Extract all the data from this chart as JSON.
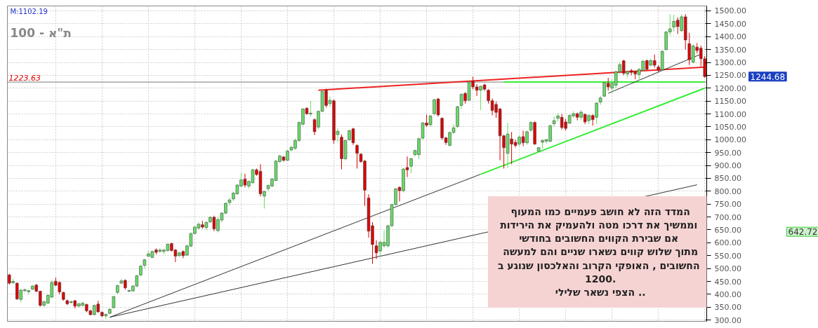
{
  "chart_data": {
    "type": "candlestick",
    "title": "ת\"א - 100",
    "categories": [
      null,
      null,
      null,
      null,
      null,
      null,
      null,
      null,
      null,
      null,
      null,
      null,
      null,
      null,
      null,
      null,
      null,
      null,
      null,
      null,
      null,
      null,
      null,
      null,
      null,
      null,
      null,
      null,
      null,
      null,
      null,
      null,
      null,
      null,
      null,
      null,
      null,
      null,
      null,
      null,
      null,
      null,
      null,
      null,
      null,
      null,
      null,
      null,
      null,
      null,
      null,
      null,
      null,
      null,
      null,
      null,
      null,
      null,
      null,
      null,
      null,
      null,
      null,
      null,
      null,
      null,
      null,
      null,
      null,
      null,
      null,
      null,
      null,
      null,
      null,
      null,
      null,
      null,
      null,
      null,
      null,
      null,
      null,
      null,
      null,
      null,
      null,
      null,
      null,
      null,
      null,
      null,
      null,
      null,
      null,
      null,
      null,
      null,
      null,
      null,
      null,
      null,
      null,
      null,
      null,
      null,
      null,
      null,
      null,
      null,
      null,
      null,
      null,
      null,
      null,
      null,
      null,
      null,
      null,
      null,
      null,
      null,
      null,
      null,
      null,
      null,
      null,
      null,
      null,
      null,
      null,
      null,
      null,
      null,
      null,
      null,
      null,
      null,
      null,
      null,
      null,
      null,
      null,
      null,
      null,
      null,
      null,
      null,
      null,
      null,
      null,
      null,
      null,
      null,
      null,
      null,
      null,
      null,
      null,
      null,
      null,
      null,
      null,
      null,
      null,
      null,
      null,
      null,
      null,
      null,
      null,
      null,
      null,
      null,
      null,
      null,
      null,
      null,
      null,
      null,
      null
    ],
    "ohlc": [
      [
        475,
        480,
        438,
        443
      ],
      [
        445,
        460,
        440,
        450
      ],
      [
        443,
        446,
        378,
        382
      ],
      [
        380,
        420,
        370,
        416
      ],
      [
        414,
        422,
        408,
        418
      ],
      [
        410,
        418,
        400,
        414
      ],
      [
        420,
        436,
        415,
        432
      ],
      [
        436,
        440,
        408,
        412
      ],
      [
        412,
        414,
        352,
        357
      ],
      [
        357,
        375,
        352,
        371
      ],
      [
        366,
        400,
        362,
        396
      ],
      [
        389,
        455,
        385,
        446
      ],
      [
        451,
        465,
        432,
        435
      ],
      [
        446,
        450,
        400,
        409
      ],
      [
        407,
        410,
        375,
        380
      ],
      [
        375,
        380,
        358,
        363
      ],
      [
        368,
        376,
        364,
        371
      ],
      [
        375,
        378,
        345,
        354
      ],
      [
        354,
        368,
        350,
        363
      ],
      [
        357,
        370,
        353,
        366
      ],
      [
        360,
        364,
        330,
        336
      ],
      [
        336,
        340,
        318,
        321
      ],
      [
        321,
        360,
        318,
        357
      ],
      [
        362,
        375,
        328,
        332
      ],
      [
        330,
        334,
        312,
        316
      ],
      [
        316,
        326,
        305,
        322
      ],
      [
        326,
        346,
        322,
        342
      ],
      [
        348,
        395,
        344,
        391
      ],
      [
        407,
        438,
        400,
        434
      ],
      [
        443,
        460,
        440,
        452
      ],
      [
        454,
        458,
        418,
        425
      ],
      [
        412,
        418,
        408,
        415
      ],
      [
        413,
        436,
        410,
        432
      ],
      [
        432,
        476,
        428,
        472
      ],
      [
        475,
        513,
        470,
        509
      ],
      [
        512,
        538,
        500,
        534
      ],
      [
        548,
        570,
        545,
        557
      ],
      [
        543,
        570,
        540,
        566
      ],
      [
        572,
        578,
        555,
        563
      ],
      [
        567,
        578,
        560,
        572
      ],
      [
        566,
        576,
        555,
        572
      ],
      [
        570,
        598,
        566,
        594
      ],
      [
        597,
        600,
        566,
        570
      ],
      [
        572,
        576,
        525,
        548
      ],
      [
        550,
        565,
        545,
        561
      ],
      [
        566,
        570,
        540,
        550
      ],
      [
        552,
        592,
        548,
        588
      ],
      [
        587,
        640,
        583,
        636
      ],
      [
        636,
        665,
        632,
        661
      ],
      [
        657,
        680,
        653,
        672
      ],
      [
        670,
        685,
        655,
        661
      ],
      [
        659,
        683,
        650,
        679
      ],
      [
        681,
        703,
        677,
        699
      ],
      [
        699,
        705,
        645,
        654
      ],
      [
        647,
        700,
        640,
        690
      ],
      [
        688,
        719,
        680,
        715
      ],
      [
        715,
        757,
        710,
        753
      ],
      [
        756,
        775,
        745,
        766
      ],
      [
        770,
        797,
        762,
        793
      ],
      [
        790,
        828,
        786,
        824
      ],
      [
        820,
        870,
        815,
        844
      ],
      [
        847,
        868,
        815,
        824
      ],
      [
        820,
        842,
        810,
        838
      ],
      [
        833,
        887,
        829,
        883
      ],
      [
        883,
        888,
        860,
        865
      ],
      [
        877,
        905,
        780,
        790
      ],
      [
        781,
        803,
        733,
        799
      ],
      [
        810,
        826,
        800,
        822
      ],
      [
        820,
        851,
        816,
        847
      ],
      [
        842,
        921,
        838,
        917
      ],
      [
        915,
        941,
        910,
        937
      ],
      [
        933,
        937,
        915,
        920
      ],
      [
        920,
        960,
        916,
        956
      ],
      [
        960,
        975,
        955,
        971
      ],
      [
        967,
        1005,
        960,
        997
      ],
      [
        997,
        1071,
        990,
        1067
      ],
      [
        1060,
        1123,
        1055,
        1119
      ],
      [
        1122,
        1126,
        1096,
        1101
      ],
      [
        1100,
        1150,
        1090,
        1103
      ],
      [
        1078,
        1082,
        1018,
        1031
      ],
      [
        1049,
        1114,
        1040,
        1110
      ],
      [
        1110,
        1192,
        1106,
        1187
      ],
      [
        1192,
        1198,
        1125,
        1133
      ],
      [
        1140,
        1168,
        1128,
        1153
      ],
      [
        1151,
        1155,
        985,
        998
      ],
      [
        1020,
        1045,
        990,
        1033
      ],
      [
        1010,
        1020,
        885,
        926
      ],
      [
        926,
        1001,
        920,
        997
      ],
      [
        1000,
        1039,
        995,
        1035
      ],
      [
        1042,
        1046,
        980,
        988
      ],
      [
        978,
        982,
        888,
        947
      ],
      [
        944,
        948,
        910,
        915
      ],
      [
        917,
        921,
        743,
        804
      ],
      [
        774,
        788,
        620,
        645
      ],
      [
        666,
        680,
        518,
        593
      ],
      [
        588,
        610,
        537,
        561
      ],
      [
        568,
        610,
        545,
        602
      ],
      [
        588,
        647,
        580,
        602
      ],
      [
        588,
        670,
        582,
        666
      ],
      [
        666,
        752,
        660,
        748
      ],
      [
        748,
        813,
        744,
        809
      ],
      [
        815,
        819,
        760,
        802
      ],
      [
        802,
        890,
        795,
        886
      ],
      [
        892,
        935,
        855,
        883
      ],
      [
        897,
        930,
        870,
        926
      ],
      [
        942,
        962,
        935,
        958
      ],
      [
        942,
        1008,
        925,
        1004
      ],
      [
        1006,
        1069,
        1000,
        1065
      ],
      [
        1065,
        1097,
        1050,
        1056
      ],
      [
        1058,
        1096,
        1050,
        1092
      ],
      [
        1101,
        1159,
        1095,
        1155
      ],
      [
        1158,
        1162,
        1090,
        1096
      ],
      [
        1083,
        1087,
        1000,
        1007
      ],
      [
        1007,
        1011,
        980,
        989
      ],
      [
        978,
        1032,
        973,
        1028
      ],
      [
        1028,
        1060,
        1022,
        1046
      ],
      [
        1051,
        1132,
        1045,
        1128
      ],
      [
        1133,
        1180,
        1120,
        1176
      ],
      [
        1180,
        1184,
        1140,
        1151
      ],
      [
        1153,
        1227,
        1150,
        1223
      ],
      [
        1228,
        1245,
        1195,
        1205
      ],
      [
        1205,
        1215,
        1170,
        1192
      ],
      [
        1192,
        1211,
        1115,
        1207
      ],
      [
        1213,
        1217,
        1190,
        1196
      ],
      [
        1192,
        1196,
        1140,
        1151
      ],
      [
        1151,
        1160,
        1095,
        1113
      ],
      [
        1137,
        1148,
        1085,
        1106
      ],
      [
        1119,
        1123,
        920,
        1015
      ],
      [
        1015,
        1019,
        888,
        969
      ],
      [
        947,
        1065,
        890,
        1022
      ],
      [
        1003,
        1030,
        905,
        983
      ],
      [
        990,
        1000,
        970,
        978
      ],
      [
        983,
        1018,
        975,
        1010
      ],
      [
        1012,
        1035,
        975,
        988
      ],
      [
        988,
        1035,
        980,
        1031
      ],
      [
        1037,
        1072,
        1030,
        1067
      ],
      [
        1067,
        1071,
        980,
        983
      ],
      [
        955,
        973,
        950,
        969
      ],
      [
        990,
        1001,
        965,
        997
      ],
      [
        994,
        1004,
        985,
        1000
      ],
      [
        994,
        1058,
        990,
        1054
      ],
      [
        1062,
        1090,
        1050,
        1074
      ],
      [
        1083,
        1103,
        1070,
        1092
      ],
      [
        1087,
        1100,
        1040,
        1047
      ],
      [
        1069,
        1080,
        1035,
        1044
      ],
      [
        1064,
        1098,
        1060,
        1094
      ],
      [
        1092,
        1110,
        1085,
        1101
      ],
      [
        1101,
        1105,
        1075,
        1087
      ],
      [
        1087,
        1115,
        1075,
        1107
      ],
      [
        1098,
        1102,
        1060,
        1069
      ],
      [
        1074,
        1098,
        1060,
        1094
      ],
      [
        1094,
        1098,
        1055,
        1078
      ],
      [
        1087,
        1146,
        1060,
        1142
      ],
      [
        1146,
        1170,
        1135,
        1162
      ],
      [
        1169,
        1225,
        1165,
        1221
      ],
      [
        1219,
        1240,
        1190,
        1205
      ],
      [
        1200,
        1235,
        1180,
        1219
      ],
      [
        1211,
        1268,
        1200,
        1264
      ],
      [
        1264,
        1300,
        1255,
        1291
      ],
      [
        1306,
        1310,
        1250,
        1258
      ],
      [
        1255,
        1270,
        1240,
        1264
      ],
      [
        1268,
        1275,
        1250,
        1261
      ],
      [
        1264,
        1268,
        1235,
        1255
      ],
      [
        1253,
        1278,
        1230,
        1273
      ],
      [
        1269,
        1312,
        1265,
        1304
      ],
      [
        1307,
        1311,
        1268,
        1273
      ],
      [
        1289,
        1315,
        1285,
        1307
      ],
      [
        1307,
        1330,
        1280,
        1289
      ],
      [
        1282,
        1290,
        1262,
        1269
      ],
      [
        1271,
        1347,
        1267,
        1343
      ],
      [
        1350,
        1422,
        1345,
        1418
      ],
      [
        1418,
        1487,
        1405,
        1430
      ],
      [
        1437,
        1485,
        1420,
        1459
      ],
      [
        1464,
        1475,
        1410,
        1439
      ],
      [
        1423,
        1487,
        1418,
        1477
      ],
      [
        1477,
        1487,
        1350,
        1387
      ],
      [
        1373,
        1415,
        1290,
        1310
      ],
      [
        1301,
        1370,
        1296,
        1364
      ],
      [
        1359,
        1375,
        1335,
        1346
      ],
      [
        1355,
        1365,
        1285,
        1314
      ],
      [
        1314,
        1325,
        1240,
        1244.68
      ]
    ],
    "colors": [
      "#dd0000",
      "#66dd66",
      "#dd0000",
      "#66dd66",
      "#66dd66",
      "#66dd66",
      "#66dd66",
      "#dd0000",
      "#dd0000",
      "#66dd66",
      "#66dd66",
      "#66dd66",
      "#dd0000",
      "#dd0000",
      "#dd0000",
      "#dd0000",
      "#66dd66",
      "#dd0000",
      "#66dd66",
      "#66dd66",
      "#dd0000",
      "#dd0000",
      "#66dd66",
      "#dd0000",
      "#dd0000",
      "#66dd66",
      "#66dd66",
      "#66dd66",
      "#66dd66",
      "#66dd66",
      "#dd0000",
      "#66dd66",
      "#66dd66",
      "#66dd66",
      "#66dd66",
      "#66dd66",
      "#66dd66",
      "#66dd66",
      "#dd0000",
      "#66dd66",
      "#66dd66",
      "#66dd66",
      "#dd0000",
      "#dd0000",
      "#66dd66",
      "#dd0000",
      "#66dd66",
      "#66dd66",
      "#66dd66",
      "#66dd66",
      "#dd0000",
      "#66dd66",
      "#66dd66",
      "#dd0000",
      "#66dd66",
      "#66dd66",
      "#66dd66",
      "#66dd66",
      "#66dd66",
      "#66dd66",
      "#66dd66",
      "#dd0000",
      "#66dd66",
      "#66dd66",
      "#dd0000",
      "#dd0000",
      "#66dd66",
      "#66dd66",
      "#66dd66",
      "#66dd66",
      "#66dd66",
      "#dd0000",
      "#66dd66",
      "#66dd66",
      "#66dd66",
      "#66dd66",
      "#66dd66",
      "#dd0000",
      "#66dd66",
      "#dd0000",
      "#66dd66",
      "#66dd66",
      "#dd0000",
      "#66dd66",
      "#dd0000",
      "#66dd66",
      "#dd0000",
      "#66dd66",
      "#66dd66",
      "#dd0000",
      "#dd0000",
      "#dd0000",
      "#dd0000",
      "#dd0000",
      "#dd0000",
      "#dd0000",
      "#66dd66",
      "#66dd66",
      "#66dd66",
      "#66dd66",
      "#66dd66",
      "#dd0000",
      "#66dd66",
      "#dd0000",
      "#66dd66",
      "#66dd66",
      "#66dd66",
      "#66dd66",
      "#dd0000",
      "#66dd66",
      "#66dd66",
      "#dd0000",
      "#dd0000",
      "#dd0000",
      "#66dd66",
      "#66dd66",
      "#66dd66",
      "#66dd66",
      "#dd0000",
      "#66dd66",
      "#dd0000",
      "#dd0000",
      "#66dd66",
      "#dd0000",
      "#dd0000",
      "#dd0000",
      "#dd0000",
      "#dd0000",
      "#dd0000",
      "#66dd66",
      "#dd0000",
      "#dd0000",
      "#66dd66",
      "#dd0000",
      "#66dd66",
      "#66dd66",
      "#dd0000",
      "#66dd66",
      "#66dd66",
      "#66dd66",
      "#66dd66",
      "#66dd66",
      "#66dd66",
      "#dd0000",
      "#dd0000",
      "#66dd66",
      "#66dd66",
      "#dd0000",
      "#66dd66",
      "#dd0000",
      "#66dd66",
      "#dd0000",
      "#66dd66",
      "#66dd66",
      "#66dd66",
      "#dd0000",
      "#66dd66",
      "#66dd66",
      "#66dd66",
      "#dd0000",
      "#66dd66",
      "#dd0000",
      "#dd0000",
      "#66dd66",
      "#66dd66",
      "#dd0000",
      "#66dd66",
      "#dd0000",
      "#dd0000",
      "#66dd66",
      "#66dd66",
      "#66dd66",
      "#66dd66",
      "#dd0000",
      "#66dd66",
      "#dd0000",
      "#dd0000",
      "#66dd66",
      "#dd0000",
      "#dd0000",
      "#dd0000"
    ],
    "series": [
      {
        "type": "line",
        "color": "#333333",
        "values": [
          null,
          null,
          null,
          null,
          null,
          null,
          null,
          null,
          null,
          null,
          null,
          null,
          null,
          null,
          null,
          null,
          null,
          null,
          null,
          null,
          null,
          null,
          null,
          null,
          null,
          null,
          311,
          null,
          null,
          null,
          null,
          null,
          null,
          null,
          null,
          null,
          null,
          null,
          null,
          null,
          null,
          null,
          null,
          null,
          null,
          null,
          null,
          null,
          null,
          null,
          null,
          null,
          null,
          null,
          null,
          null,
          null,
          null,
          null,
          null,
          null,
          null,
          null,
          null,
          null,
          null,
          null,
          null,
          null,
          null,
          null,
          null,
          null,
          null,
          null,
          null,
          null,
          null,
          null,
          null,
          null,
          null,
          null,
          null,
          null,
          null,
          null,
          null,
          null,
          null,
          null,
          null,
          null,
          null,
          null,
          null,
          null,
          null,
          null,
          null,
          null,
          null,
          null,
          null,
          null,
          null,
          null,
          null,
          null,
          null,
          null,
          null,
          null,
          null,
          null,
          null,
          null,
          null,
          null,
          null,
          null,
          null,
          866,
          null,
          null,
          null,
          null,
          null,
          null,
          null,
          null,
          null,
          null,
          null,
          null,
          null,
          null,
          null,
          null,
          null,
          null,
          null,
          null,
          null,
          null,
          null,
          null,
          null,
          null,
          null,
          null,
          null,
          null,
          null,
          null,
          null,
          null,
          null,
          null,
          null,
          null,
          null,
          null,
          null,
          null,
          null,
          null,
          null,
          null,
          null,
          null,
          null,
          null,
          null,
          null,
          null,
          null,
          null,
          null,
          null,
          null
        ]
      },
      {
        "type": "line",
        "color": "#33ee33",
        "values": [
          null,
          null,
          null,
          null,
          null,
          null,
          null,
          null,
          null,
          null,
          null,
          null,
          null,
          null,
          null,
          null,
          null,
          null,
          null,
          null,
          null,
          null,
          null,
          null,
          null,
          null,
          null,
          null,
          null,
          null,
          null,
          null,
          null,
          null,
          null,
          null,
          null,
          null,
          null,
          null,
          null,
          null,
          null,
          null,
          null,
          null,
          null,
          null,
          null,
          null,
          null,
          null,
          null,
          null,
          null,
          null,
          null,
          null,
          null,
          null,
          null,
          null,
          null,
          null,
          null,
          null,
          null,
          null,
          null,
          null,
          null,
          null,
          null,
          null,
          null,
          null,
          null,
          null,
          null,
          null,
          null,
          null,
          null,
          null,
          null,
          null,
          null,
          null,
          null,
          null,
          null,
          null,
          null,
          null,
          null,
          null,
          null,
          null,
          null,
          null,
          null,
          null,
          null,
          null,
          null,
          null,
          null,
          null,
          null,
          null,
          null,
          null,
          null,
          null,
          null,
          null,
          null,
          null,
          null,
          null,
          null,
          null,
          866,
          null,
          null,
          null,
          null,
          null,
          null,
          null,
          null,
          null,
          null,
          null,
          null,
          null,
          null,
          null,
          null,
          null,
          null,
          null,
          null,
          null,
          null,
          null,
          null,
          null,
          null,
          null,
          null,
          null,
          null,
          null,
          null,
          null,
          null,
          null,
          null,
          null,
          null,
          null,
          null,
          null,
          null,
          null,
          null,
          null,
          null,
          null,
          null,
          null,
          null,
          null,
          null,
          null,
          null,
          null,
          null,
          null,
          1200
        ]
      },
      {
        "type": "line",
        "color": "#333333",
        "values": [
          null,
          null,
          null,
          null,
          null,
          null,
          null,
          null,
          null,
          null,
          null,
          null,
          null,
          null,
          null,
          null,
          null,
          null,
          null,
          null,
          null,
          null,
          null,
          null,
          null,
          null,
          311,
          null,
          null,
          null,
          null,
          null,
          null,
          null,
          null,
          null,
          null,
          null,
          null,
          null,
          null,
          null,
          null,
          null,
          null,
          null,
          null,
          null,
          null,
          null,
          null,
          null,
          null,
          null,
          null,
          null,
          null,
          null,
          null,
          null,
          null,
          null,
          null,
          null,
          null,
          null,
          null,
          null,
          null,
          null,
          null,
          null,
          null,
          null,
          null,
          null,
          null,
          null,
          null,
          null,
          null,
          null,
          null,
          null,
          null,
          null,
          null,
          null,
          null,
          null,
          null,
          null,
          null,
          null,
          null,
          null,
          null,
          null,
          null,
          null,
          null,
          null,
          null,
          null,
          null,
          null,
          null,
          null,
          null,
          null,
          null,
          null,
          null,
          null,
          null,
          null,
          null,
          null,
          null,
          null,
          null,
          null,
          null,
          null,
          null,
          null,
          null,
          null,
          null,
          null,
          null,
          null,
          null,
          null,
          null,
          null,
          null,
          null,
          null,
          null,
          null,
          null,
          null,
          null,
          null,
          null,
          null,
          null,
          null,
          null,
          null,
          null,
          null,
          null,
          null,
          null,
          null,
          null,
          null,
          null,
          null,
          null,
          null,
          null,
          null,
          null,
          null,
          null,
          null,
          null,
          null,
          null,
          null,
          null,
          null,
          null,
          null,
          null,
          825,
          null,
          null
        ]
      },
      {
        "type": "line",
        "color": "#ee2222",
        "values": [
          null,
          null,
          null,
          null,
          null,
          null,
          null,
          null,
          null,
          null,
          null,
          null,
          null,
          null,
          null,
          null,
          null,
          null,
          null,
          null,
          null,
          null,
          null,
          null,
          null,
          null,
          null,
          null,
          null,
          null,
          null,
          null,
          null,
          null,
          null,
          null,
          null,
          null,
          null,
          null,
          null,
          null,
          null,
          null,
          null,
          null,
          null,
          null,
          null,
          null,
          null,
          null,
          null,
          null,
          null,
          null,
          null,
          null,
          null,
          null,
          null,
          null,
          null,
          null,
          null,
          null,
          null,
          null,
          null,
          null,
          null,
          null,
          null,
          null,
          null,
          null,
          null,
          null,
          null,
          null,
          1192,
          null,
          null,
          null,
          null,
          null,
          null,
          null,
          null,
          null,
          null,
          null,
          null,
          null,
          null,
          null,
          null,
          null,
          null,
          null,
          null,
          null,
          null,
          null,
          null,
          null,
          null,
          null,
          null,
          null,
          null,
          null,
          null,
          null,
          null,
          null,
          null,
          null,
          null,
          null,
          null,
          null,
          null,
          null,
          null,
          null,
          null,
          null,
          null,
          null,
          null,
          null,
          null,
          null,
          null,
          null,
          null,
          null,
          null,
          null,
          null,
          null,
          null,
          null,
          null,
          null,
          null,
          null,
          null,
          null,
          null,
          null,
          null,
          null,
          null,
          null,
          null,
          null,
          null,
          null,
          null,
          null,
          null,
          null,
          null,
          null,
          null,
          null,
          null,
          null,
          null,
          null,
          null,
          null,
          null,
          null,
          null,
          null,
          null,
          null,
          1282
        ]
      },
      {
        "type": "line",
        "color": "#33ee33",
        "values": [
          null,
          null,
          null,
          null,
          null,
          null,
          null,
          null,
          null,
          null,
          null,
          null,
          null,
          null,
          null,
          null,
          null,
          null,
          null,
          null,
          null,
          null,
          null,
          null,
          null,
          null,
          null,
          null,
          null,
          null,
          null,
          null,
          null,
          null,
          null,
          null,
          null,
          null,
          null,
          null,
          null,
          null,
          null,
          null,
          null,
          null,
          null,
          null,
          null,
          null,
          null,
          null,
          null,
          null,
          null,
          null,
          null,
          null,
          null,
          null,
          null,
          null,
          null,
          null,
          null,
          null,
          null,
          null,
          null,
          null,
          null,
          null,
          null,
          null,
          null,
          null,
          null,
          null,
          null,
          null,
          null,
          null,
          null,
          null,
          null,
          null,
          null,
          null,
          null,
          null,
          null,
          null,
          null,
          null,
          null,
          null,
          null,
          null,
          null,
          null,
          null,
          null,
          null,
          null,
          null,
          null,
          null,
          null,
          null,
          null,
          null,
          null,
          null,
          null,
          null,
          null,
          null,
          null,
          null,
          null,
          null,
          null,
          null,
          null,
          null,
          null,
          null,
          null,
          1224,
          null,
          null,
          null,
          null,
          null,
          null,
          null,
          null,
          null,
          null,
          null,
          null,
          null,
          null,
          null,
          null,
          null,
          null,
          null,
          null,
          null,
          null,
          null,
          null,
          null,
          null,
          null,
          null,
          null,
          null,
          null,
          null,
          null,
          null,
          null,
          null,
          null,
          null,
          null,
          null,
          null,
          null,
          null,
          null,
          null,
          null,
          null,
          null,
          null,
          null,
          null,
          1224
        ]
      },
      {
        "type": "line",
        "color": "#333333",
        "values": [
          null,
          null,
          null,
          null,
          null,
          null,
          null,
          null,
          null,
          null,
          null,
          null,
          null,
          null,
          null,
          null,
          null,
          null,
          null,
          null,
          null,
          null,
          null,
          null,
          null,
          null,
          null,
          null,
          null,
          null,
          null,
          null,
          null,
          null,
          null,
          null,
          null,
          null,
          null,
          null,
          null,
          null,
          null,
          null,
          null,
          null,
          null,
          null,
          null,
          null,
          null,
          null,
          null,
          null,
          null,
          null,
          null,
          null,
          null,
          null,
          null,
          null,
          null,
          null,
          null,
          null,
          null,
          null,
          null,
          null,
          null,
          null,
          null,
          null,
          null,
          null,
          null,
          null,
          null,
          null,
          null,
          null,
          null,
          null,
          null,
          null,
          null,
          null,
          null,
          null,
          null,
          null,
          null,
          null,
          null,
          null,
          null,
          null,
          null,
          null,
          null,
          null,
          null,
          null,
          null,
          null,
          null,
          null,
          null,
          null,
          null,
          null,
          null,
          null,
          null,
          null,
          null,
          null,
          null,
          null,
          null,
          null,
          null,
          null,
          null,
          null,
          null,
          null,
          null,
          null,
          null,
          null,
          null,
          null,
          null,
          null,
          null,
          null,
          null,
          null,
          null,
          null,
          null,
          null,
          null,
          null,
          null,
          null,
          null,
          null,
          null,
          null,
          null,
          null,
          null,
          1180,
          null,
          null,
          null,
          null,
          null,
          null,
          null,
          null,
          null,
          null,
          null,
          null,
          null,
          null,
          null,
          null,
          null,
          null,
          null,
          null,
          null,
          null,
          null,
          1332,
          null
        ]
      }
    ],
    "ref_lines": [
      {
        "axis": "y",
        "value": 1223.63,
        "label": "1223.63",
        "color": "#777777"
      }
    ],
    "annotations": [
      "M:1102.19",
      "1244.68",
      "642.72",
      "המדד הזה לא חושב פעמיים כמו המעוף\nוממשיך את דרכו מטה  ולהעמיק את הירידות\nאם שבירת הקווים  החשובים בחודשי\nמתוך שלוש קווים נשארו שניים והם למעשה\nהחשובים , האופקי  הקרוב והאלכסון שנוגע ב\n1200.\nהצפי נשאר שלילי .."
    ],
    "ylim": [
      295,
      1519
    ],
    "yticks": [
      {
        "value": 300,
        "label": "300.00"
      },
      {
        "value": 350,
        "label": "350.00"
      },
      {
        "value": 400,
        "label": "400.00"
      },
      {
        "value": 450,
        "label": "450.00"
      },
      {
        "value": 500,
        "label": "500.00"
      },
      {
        "value": 550,
        "label": "550.00"
      },
      {
        "value": 600,
        "label": "600.00"
      },
      {
        "value": 650,
        "label": "650.00"
      },
      {
        "value": 700,
        "label": "700.00"
      },
      {
        "value": 750,
        "label": "750.00"
      },
      {
        "value": 800,
        "label": "800.00"
      },
      {
        "value": 850,
        "label": "850.00"
      },
      {
        "value": 900,
        "label": "900.00"
      },
      {
        "value": 950,
        "label": "950.00"
      },
      {
        "value": 1000,
        "label": "1000.00"
      },
      {
        "value": 1050,
        "label": "1050.00"
      },
      {
        "value": 1100,
        "label": "1100.00"
      },
      {
        "value": 1150,
        "label": "1150.00"
      },
      {
        "value": 1200,
        "label": "1200.00"
      },
      {
        "value": 1250,
        "label": "1250.00"
      },
      {
        "value": 1300,
        "label": "1300.00"
      },
      {
        "value": 1350,
        "label": "1350.00"
      },
      {
        "value": 1400,
        "label": "1400.00"
      },
      {
        "value": 1450,
        "label": "1450.00"
      },
      {
        "value": 1500,
        "label": "1500.00"
      }
    ],
    "grid": true,
    "tick_labels": "y"
  }
}
